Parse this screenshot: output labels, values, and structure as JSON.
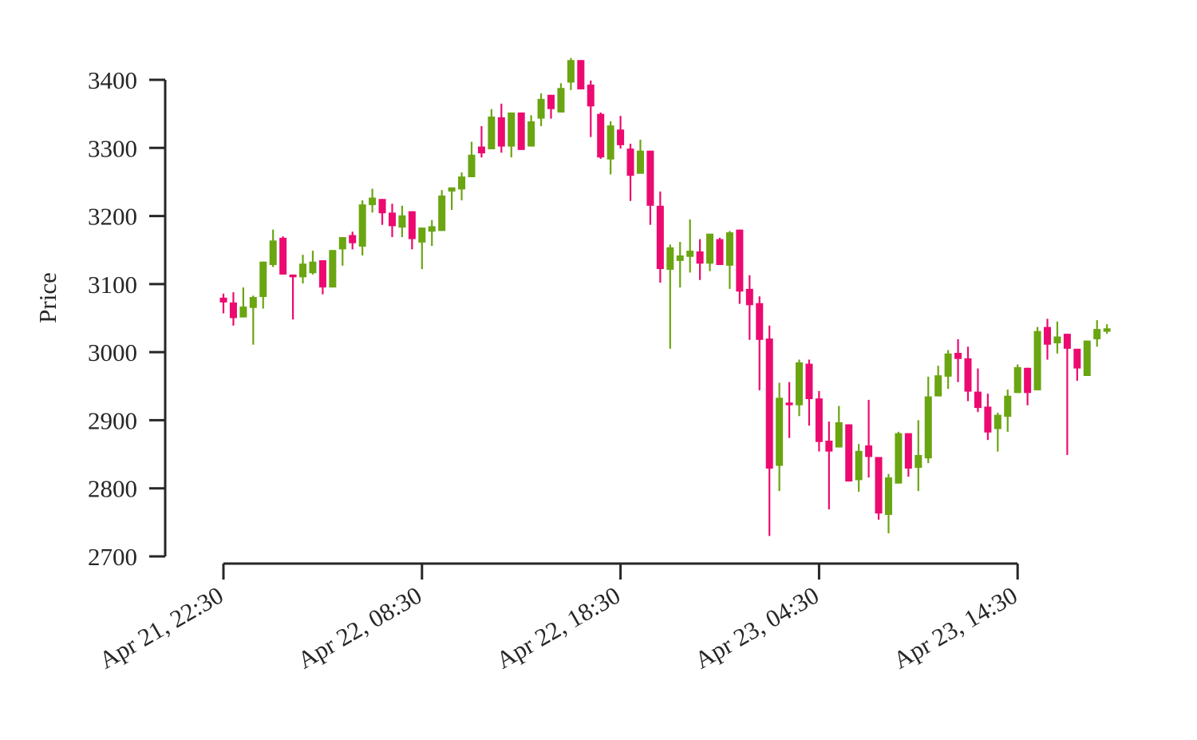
{
  "chart_data": {
    "type": "candlestick",
    "ylabel": "Price",
    "up_color": "#6aa512",
    "down_color": "#ec0a70",
    "ylim": [
      2700,
      3400
    ],
    "yticks": [
      2700,
      2800,
      2900,
      3000,
      3100,
      3200,
      3300,
      3400
    ],
    "xticks": [
      "Apr 21, 22:30",
      "Apr 22, 08:30",
      "Apr 22, 18:30",
      "Apr 23, 04:30",
      "Apr 23, 14:30"
    ],
    "x": [
      "Apr 21, 22:30",
      "Apr 21, 23:00",
      "Apr 21, 23:30",
      "Apr 22, 00:00",
      "Apr 22, 00:30",
      "Apr 22, 01:00",
      "Apr 22, 01:30",
      "Apr 22, 02:00",
      "Apr 22, 02:30",
      "Apr 22, 03:00",
      "Apr 22, 03:30",
      "Apr 22, 04:00",
      "Apr 22, 04:30",
      "Apr 22, 05:00",
      "Apr 22, 05:30",
      "Apr 22, 06:00",
      "Apr 22, 06:30",
      "Apr 22, 07:00",
      "Apr 22, 07:30",
      "Apr 22, 08:00",
      "Apr 22, 08:30",
      "Apr 22, 09:00",
      "Apr 22, 09:30",
      "Apr 22, 10:00",
      "Apr 22, 10:30",
      "Apr 22, 11:00",
      "Apr 22, 11:30",
      "Apr 22, 12:00",
      "Apr 22, 12:30",
      "Apr 22, 13:00",
      "Apr 22, 13:30",
      "Apr 22, 14:00",
      "Apr 22, 14:30",
      "Apr 22, 15:00",
      "Apr 22, 15:30",
      "Apr 22, 16:00",
      "Apr 22, 16:30",
      "Apr 22, 17:00",
      "Apr 22, 17:30",
      "Apr 22, 18:00",
      "Apr 22, 18:30",
      "Apr 22, 19:00",
      "Apr 22, 19:30",
      "Apr 22, 20:00",
      "Apr 22, 20:30",
      "Apr 22, 21:00",
      "Apr 22, 21:30",
      "Apr 22, 22:00",
      "Apr 22, 22:30",
      "Apr 22, 23:00",
      "Apr 22, 23:30",
      "Apr 23, 00:00",
      "Apr 23, 00:30",
      "Apr 23, 01:00",
      "Apr 23, 01:30",
      "Apr 23, 02:00",
      "Apr 23, 02:30",
      "Apr 23, 03:00",
      "Apr 23, 03:30",
      "Apr 23, 04:00",
      "Apr 23, 04:30",
      "Apr 23, 05:00",
      "Apr 23, 05:30",
      "Apr 23, 06:00",
      "Apr 23, 06:30",
      "Apr 23, 07:00",
      "Apr 23, 07:30",
      "Apr 23, 08:00",
      "Apr 23, 08:30",
      "Apr 23, 09:00",
      "Apr 23, 09:30",
      "Apr 23, 10:00",
      "Apr 23, 10:30",
      "Apr 23, 11:00",
      "Apr 23, 11:30",
      "Apr 23, 12:00",
      "Apr 23, 12:30",
      "Apr 23, 13:00",
      "Apr 23, 13:30",
      "Apr 23, 14:00",
      "Apr 23, 14:30",
      "Apr 23, 15:00",
      "Apr 23, 15:30",
      "Apr 23, 16:00",
      "Apr 23, 16:30",
      "Apr 23, 17:00",
      "Apr 23, 17:30",
      "Apr 23, 18:00",
      "Apr 23, 18:30",
      "Apr 23, 19:00"
    ],
    "open": [
      3080,
      3073,
      3051,
      3065,
      3081,
      3128,
      3168,
      3114,
      3110,
      3116,
      3135,
      3095,
      3151,
      3172,
      3155,
      3216,
      3225,
      3205,
      3183,
      3207,
      3161,
      3177,
      3178,
      3236,
      3239,
      3257,
      3302,
      3298,
      3345,
      3302,
      3352,
      3302,
      3343,
      3378,
      3352,
      3396,
      3429,
      3393,
      3350,
      3283,
      3327,
      3299,
      3262,
      3296,
      3215,
      3121,
      3134,
      3140,
      3148,
      3130,
      3166,
      3127,
      3180,
      3093,
      3072,
      3020,
      2833,
      2926,
      2922,
      2983,
      2932,
      2870,
      2860,
      2894,
      2812,
      2863,
      2846,
      2761,
      2807,
      2881,
      2830,
      2844,
      2935,
      2964,
      2999,
      2991,
      2942,
      2920,
      2887,
      2905,
      2940,
      2977,
      2944,
      3037,
      3013,
      3027,
      3005,
      2965,
      3019,
      3030
    ],
    "high": [
      3086,
      3088,
      3095,
      3083,
      3133,
      3180,
      3170,
      3114,
      3143,
      3149,
      3135,
      3150,
      3169,
      3177,
      3223,
      3240,
      3225,
      3218,
      3215,
      3207,
      3183,
      3194,
      3238,
      3242,
      3264,
      3309,
      3332,
      3357,
      3365,
      3352,
      3352,
      3348,
      3380,
      3378,
      3395,
      3432,
      3429,
      3399,
      3352,
      3339,
      3347,
      3306,
      3312,
      3296,
      3236,
      3158,
      3162,
      3195,
      3166,
      3174,
      3168,
      3178,
      3180,
      3113,
      3082,
      3039,
      2955,
      2956,
      2989,
      2989,
      2943,
      2898,
      2921,
      2894,
      2865,
      2930,
      2846,
      2821,
      2883,
      2881,
      2900,
      2964,
      2980,
      3003,
      3019,
      3008,
      2976,
      2939,
      2911,
      2945,
      2982,
      2977,
      3037,
      3049,
      3045,
      3027,
      3005,
      3017,
      3047,
      3041
    ],
    "low": [
      3057,
      3039,
      3051,
      3011,
      3064,
      3125,
      3114,
      3048,
      3101,
      3114,
      3085,
      3095,
      3127,
      3151,
      3142,
      3205,
      3187,
      3169,
      3169,
      3151,
      3122,
      3156,
      3178,
      3209,
      3223,
      3257,
      3286,
      3298,
      3293,
      3286,
      3297,
      3302,
      3332,
      3343,
      3352,
      3385,
      3386,
      3316,
      3284,
      3261,
      3299,
      3222,
      3262,
      3187,
      3102,
      3005,
      3095,
      3117,
      3106,
      3119,
      3128,
      3093,
      3071,
      3018,
      2944,
      2730,
      2796,
      2874,
      2906,
      2892,
      2854,
      2769,
      2860,
      2810,
      2795,
      2816,
      2754,
      2734,
      2807,
      2817,
      2796,
      2837,
      2935,
      2946,
      2956,
      2928,
      2912,
      2871,
      2854,
      2883,
      2940,
      2922,
      2944,
      2989,
      2998,
      2849,
      2958,
      2965,
      3008,
      3027
    ],
    "close": [
      3073,
      3050,
      3067,
      3081,
      3133,
      3164,
      3114,
      3110,
      3130,
      3133,
      3095,
      3150,
      3169,
      3160,
      3217,
      3227,
      3204,
      3185,
      3201,
      3166,
      3183,
      3185,
      3230,
      3242,
      3258,
      3290,
      3292,
      3346,
      3302,
      3352,
      3297,
      3339,
      3372,
      3357,
      3388,
      3429,
      3386,
      3361,
      3286,
      3333,
      3304,
      3259,
      3296,
      3215,
      3122,
      3154,
      3142,
      3149,
      3130,
      3174,
      3128,
      3176,
      3089,
      3069,
      3018,
      2829,
      2933,
      2922,
      2985,
      2931,
      2868,
      2854,
      2897,
      2810,
      2855,
      2846,
      2763,
      2816,
      2881,
      2829,
      2849,
      2935,
      2966,
      2998,
      2990,
      2942,
      2918,
      2882,
      2908,
      2936,
      2978,
      2940,
      3031,
      3011,
      3023,
      3005,
      2976,
      3017,
      3034,
      3035
    ]
  }
}
